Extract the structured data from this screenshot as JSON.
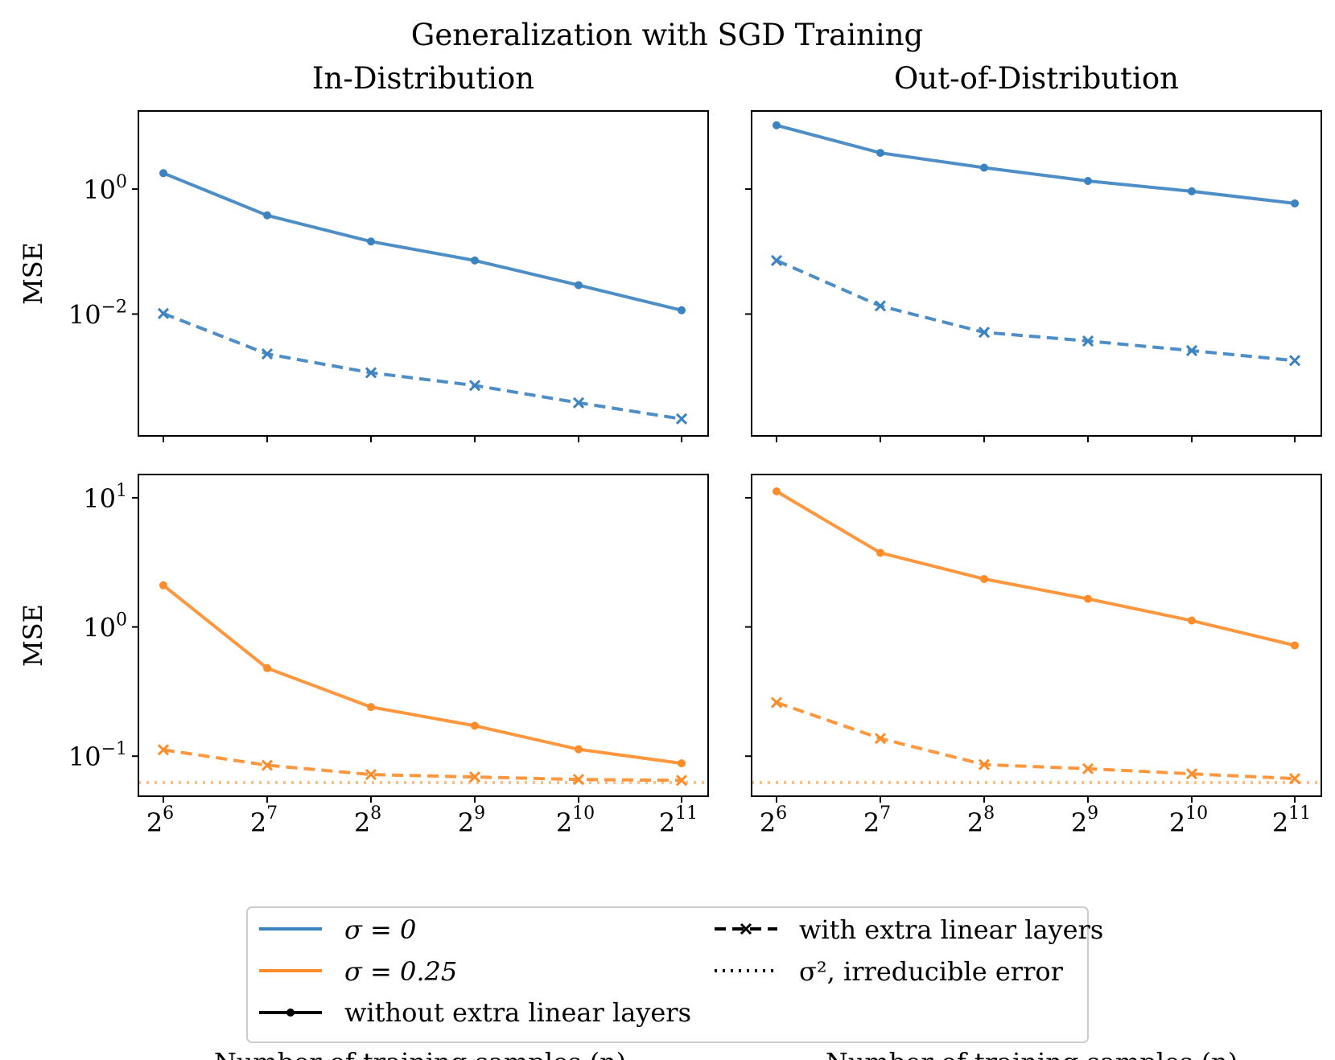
{
  "suptitle": "Generalization with SGD Training",
  "colors": {
    "sigma0": "#3b82c0",
    "sigma025": "#ff8c2a",
    "irreducible": "#ffbf80",
    "axis": "#000000"
  },
  "x_label": "Number of training samples (n)",
  "x_tick_labels": [
    {
      "base": "2",
      "exp": "6"
    },
    {
      "base": "2",
      "exp": "7"
    },
    {
      "base": "2",
      "exp": "8"
    },
    {
      "base": "2",
      "exp": "9"
    },
    {
      "base": "2",
      "exp": "10"
    },
    {
      "base": "2",
      "exp": "11"
    }
  ],
  "legend": {
    "sigma0": "σ = 0",
    "sigma025": "σ = 0.25",
    "without": "without extra linear layers",
    "with": "with extra linear layers",
    "irreducible": "σ², irreducible error"
  },
  "chart_data": [
    {
      "id": "top-left",
      "type": "line",
      "title": "In-Distribution",
      "ylabel": "MSE",
      "yscale": "log",
      "ylim_log10": [
        -3.95,
        1.25
      ],
      "y_ticks": [
        {
          "base": "10",
          "exp": "0",
          "log10": 0
        },
        {
          "base": "10",
          "exp": "−2",
          "log10": -2
        }
      ],
      "x": [
        64,
        128,
        256,
        512,
        1024,
        2048
      ],
      "series": [
        {
          "name": "σ = 0, without extra linear layers",
          "color_key": "sigma0",
          "style": "solid",
          "marker": "dot",
          "values": [
            1.8,
            0.38,
            0.145,
            0.072,
            0.029,
            0.0115
          ]
        },
        {
          "name": "σ = 0, with extra linear layers",
          "color_key": "sigma0",
          "style": "dashed",
          "marker": "x",
          "values": [
            0.0102,
            0.0023,
            0.00115,
            0.00072,
            0.00038,
            0.00021
          ]
        }
      ]
    },
    {
      "id": "top-right",
      "type": "line",
      "title": "Out-of-Distribution",
      "ylabel": "",
      "yscale": "log",
      "ylim_log10": [
        -3.95,
        1.25
      ],
      "y_ticks": [
        {
          "base": "",
          "exp": "",
          "log10": 0
        },
        {
          "base": "",
          "exp": "",
          "log10": -2
        }
      ],
      "x": [
        64,
        128,
        256,
        512,
        1024,
        2048
      ],
      "series": [
        {
          "name": "σ = 0, without extra linear layers",
          "color_key": "sigma0",
          "style": "solid",
          "marker": "dot",
          "values": [
            10.5,
            3.8,
            2.2,
            1.35,
            0.92,
            0.59
          ]
        },
        {
          "name": "σ = 0, with extra linear layers",
          "color_key": "sigma0",
          "style": "dashed",
          "marker": "x",
          "values": [
            0.072,
            0.0135,
            0.0051,
            0.0037,
            0.0026,
            0.0018
          ]
        }
      ]
    },
    {
      "id": "bottom-left",
      "type": "line",
      "title": "",
      "ylabel": "MSE",
      "yscale": "log",
      "ylim_log10": [
        -1.31,
        1.18
      ],
      "y_ticks": [
        {
          "base": "10",
          "exp": "1",
          "log10": 1
        },
        {
          "base": "10",
          "exp": "0",
          "log10": 0
        },
        {
          "base": "10",
          "exp": "−1",
          "log10": -1
        }
      ],
      "x": [
        64,
        128,
        256,
        512,
        1024,
        2048
      ],
      "irreducible_error": 0.0625,
      "series": [
        {
          "name": "σ = 0.25, without extra linear layers",
          "color_key": "sigma025",
          "style": "solid",
          "marker": "dot",
          "values": [
            2.1,
            0.48,
            0.24,
            0.172,
            0.113,
            0.088
          ]
        },
        {
          "name": "σ = 0.25, with extra linear layers",
          "color_key": "sigma025",
          "style": "dashed",
          "marker": "x",
          "values": [
            0.112,
            0.085,
            0.072,
            0.069,
            0.066,
            0.065
          ]
        }
      ]
    },
    {
      "id": "bottom-right",
      "type": "line",
      "title": "",
      "ylabel": "",
      "yscale": "log",
      "ylim_log10": [
        -1.31,
        1.18
      ],
      "y_ticks": [
        {
          "base": "",
          "exp": "",
          "log10": 1
        },
        {
          "base": "",
          "exp": "",
          "log10": 0
        },
        {
          "base": "",
          "exp": "",
          "log10": -1
        }
      ],
      "x": [
        64,
        128,
        256,
        512,
        1024,
        2048
      ],
      "irreducible_error": 0.0625,
      "series": [
        {
          "name": "σ = 0.25, without extra linear layers",
          "color_key": "sigma025",
          "style": "solid",
          "marker": "dot",
          "values": [
            11.2,
            3.75,
            2.35,
            1.65,
            1.12,
            0.72
          ]
        },
        {
          "name": "σ = 0.25, with extra linear layers",
          "color_key": "sigma025",
          "style": "dashed",
          "marker": "x",
          "values": [
            0.26,
            0.137,
            0.086,
            0.08,
            0.073,
            0.067
          ]
        }
      ]
    }
  ]
}
